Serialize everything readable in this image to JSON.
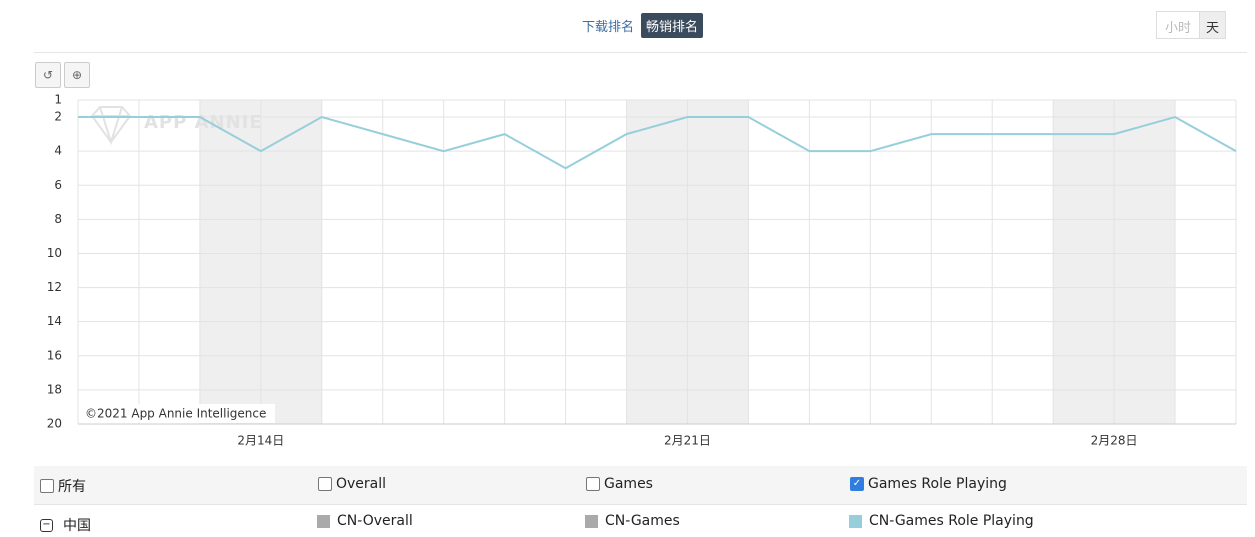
{
  "tabs": [
    "下载排名",
    "畅销排名"
  ],
  "active_tab": 1,
  "granularity": [
    "小时",
    "天"
  ],
  "chart_data": {
    "type": "line",
    "watermark": "APP ANNIE",
    "credit": "©2021 App Annie Intelligence",
    "categories": [
      null,
      null,
      null,
      "2月14日",
      null,
      null,
      null,
      null,
      null,
      null,
      "2月21日",
      null,
      null,
      null,
      null,
      null,
      null,
      "2月28日",
      null,
      null
    ],
    "series": [
      {
        "name": "CN-Games Role Playing",
        "color": "#96cfdb",
        "values": [
          2,
          2,
          2,
          4,
          2,
          3,
          4,
          3,
          5,
          3,
          2,
          2,
          4,
          4,
          3,
          3,
          3,
          3,
          2,
          4
        ]
      }
    ],
    "ylim": [
      1,
      20
    ],
    "y_inverted": true,
    "yticks": [
      1,
      2,
      4,
      6,
      8,
      10,
      12,
      14,
      16,
      18,
      20
    ],
    "grid": true
  },
  "legend": {
    "filters": [
      {
        "label": "所有",
        "checked": false
      },
      {
        "label": "Overall",
        "checked": false
      },
      {
        "label": "Games",
        "checked": false
      },
      {
        "label": "Games Role Playing",
        "checked": true
      }
    ],
    "country": "中国",
    "entries": [
      {
        "label": "CN-Overall",
        "color": "#aaaaaa"
      },
      {
        "label": "CN-Games",
        "color": "#aaaaaa"
      },
      {
        "label": "CN-Games Role Playing",
        "color": "#96cfdb"
      }
    ]
  }
}
